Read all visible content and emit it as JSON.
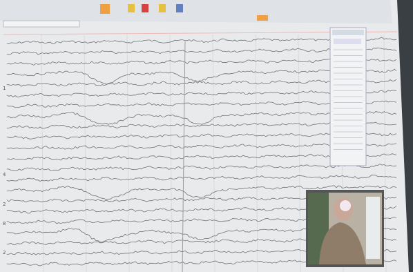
{
  "screen": {
    "channel_labels": [
      "1",
      "4",
      "2",
      "8",
      "2"
    ]
  }
}
